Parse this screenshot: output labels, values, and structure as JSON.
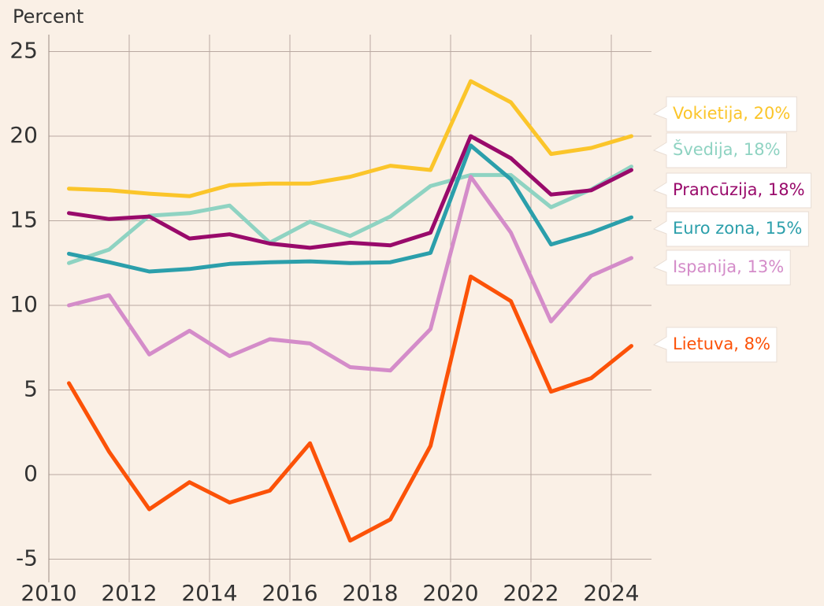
{
  "chart_data": {
    "type": "line",
    "y_label": "Percent",
    "xlim": [
      2010,
      2025
    ],
    "xticks": [
      2010,
      2012,
      2014,
      2016,
      2018,
      2020,
      2022,
      2024
    ],
    "ylim": [
      -6,
      26
    ],
    "yticks": [
      -5,
      0,
      5,
      10,
      15,
      20,
      25
    ],
    "grid": true,
    "x": [
      2010.5,
      2011.5,
      2012.5,
      2013.5,
      2014.5,
      2015.5,
      2016.5,
      2017.5,
      2018.5,
      2019.5,
      2020.5,
      2021.5,
      2022.5,
      2023.5,
      2024.5
    ],
    "series": [
      {
        "name": "Vokietija, 20%",
        "color": "#fbc52a",
        "values": [
          16.9,
          16.8,
          16.6,
          16.45,
          17.1,
          17.2,
          17.2,
          17.6,
          18.25,
          18.0,
          23.25,
          22.0,
          18.95,
          19.3,
          20.0
        ]
      },
      {
        "name": "Švedija, 18%",
        "color": "#8fd3c2",
        "values": [
          12.5,
          13.3,
          15.3,
          15.45,
          15.9,
          13.7,
          14.95,
          14.1,
          15.25,
          17.05,
          17.7,
          17.7,
          15.8,
          16.85,
          18.2
        ]
      },
      {
        "name": "Prancūzija, 18%",
        "color": "#990a6b",
        "values": [
          15.45,
          15.1,
          15.25,
          13.95,
          14.2,
          13.65,
          13.4,
          13.7,
          13.55,
          14.3,
          20.0,
          18.7,
          16.55,
          16.8,
          18.0
        ]
      },
      {
        "name": "Euro zona, 15%",
        "color": "#2b9fab",
        "values": [
          13.05,
          12.55,
          12.0,
          12.15,
          12.45,
          12.55,
          12.6,
          12.5,
          12.55,
          13.1,
          19.45,
          17.45,
          13.6,
          14.3,
          15.2
        ]
      },
      {
        "name": "Ispanija, 13%",
        "color": "#d48cc9",
        "values": [
          10.0,
          10.6,
          7.1,
          8.5,
          7.0,
          8.0,
          7.75,
          6.35,
          6.15,
          8.6,
          17.6,
          14.3,
          9.05,
          11.75,
          12.8
        ]
      },
      {
        "name": "Lietuva, 8%",
        "color": "#fc5208",
        "values": [
          5.4,
          1.35,
          -2.05,
          -0.45,
          -1.65,
          -0.95,
          1.85,
          -3.9,
          -2.65,
          1.7,
          11.7,
          10.25,
          4.9,
          5.7,
          7.6
        ]
      }
    ]
  }
}
